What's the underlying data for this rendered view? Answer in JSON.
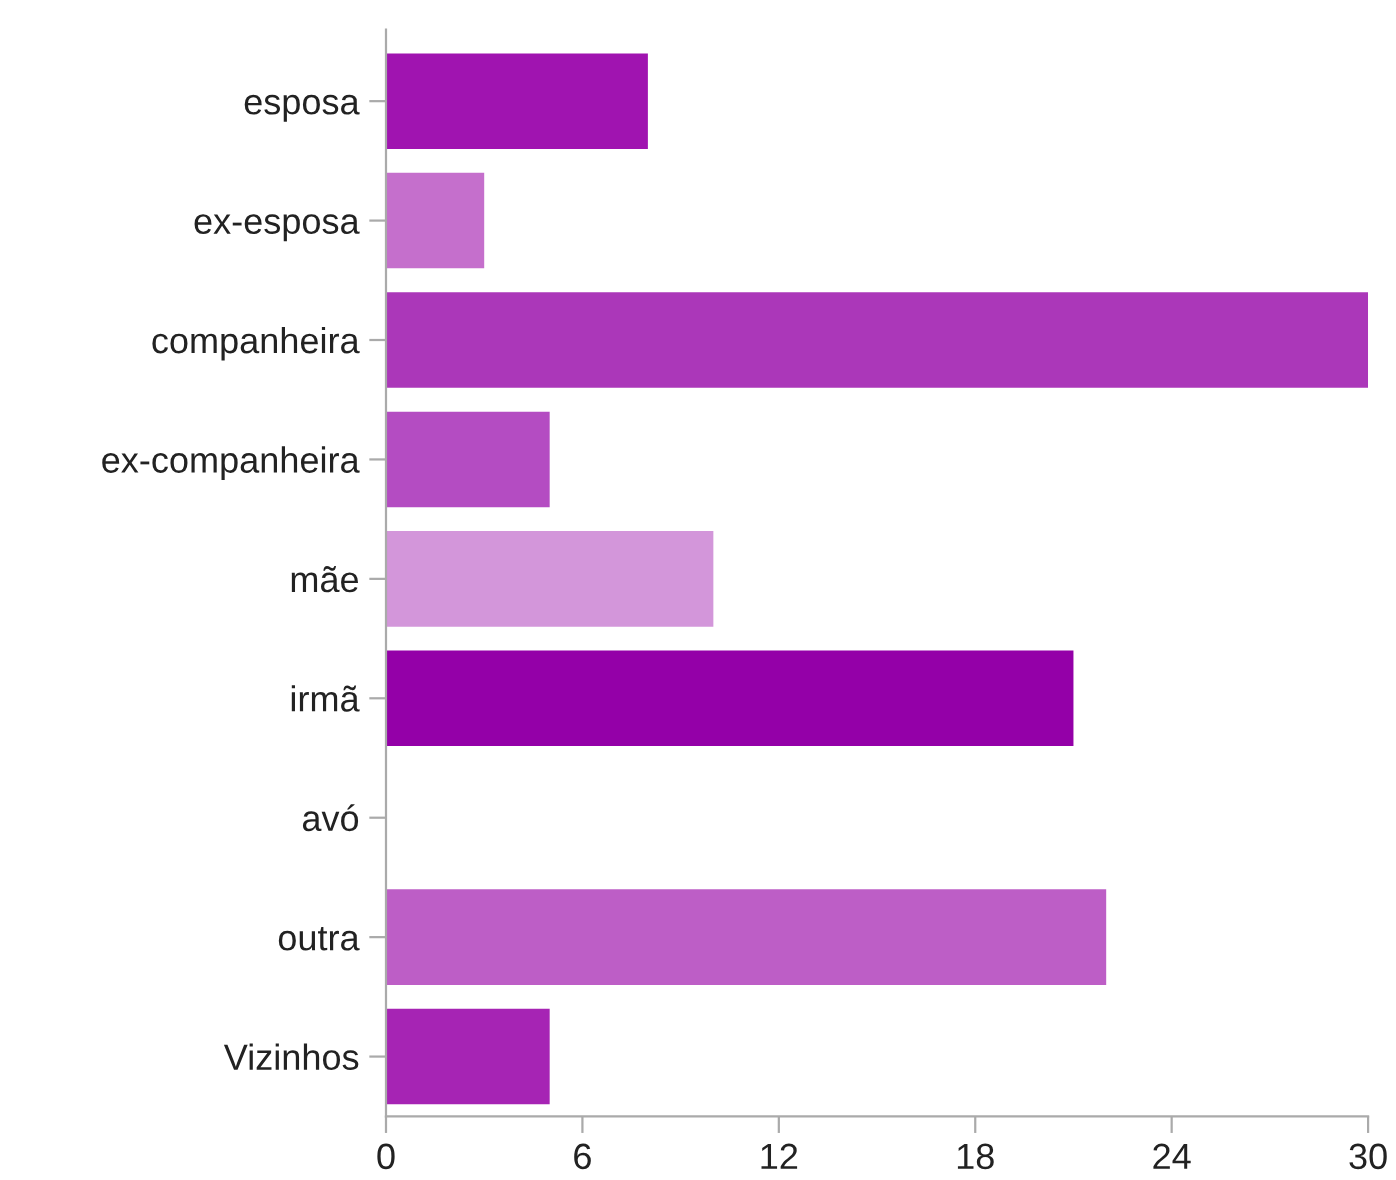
{
  "chart_data": {
    "type": "bar",
    "orientation": "horizontal",
    "categories": [
      "esposa",
      "ex-esposa",
      "companheira",
      "ex-companheira",
      "mãe",
      "irmã",
      "avó",
      "outra",
      "Vizinhos"
    ],
    "values": [
      8,
      3,
      30,
      5,
      10,
      21,
      0,
      22,
      5
    ],
    "colors": [
      "#a014b0",
      "#c56fcc",
      "#ab37b9",
      "#b44cc2",
      "#d396da",
      "#9400a8",
      "#b44cc2",
      "#bd5ec6",
      "#a624b4"
    ],
    "xlim": [
      0,
      30
    ],
    "xticks": [
      0,
      6,
      12,
      18,
      24,
      30
    ],
    "grid": false,
    "legend": false
  }
}
